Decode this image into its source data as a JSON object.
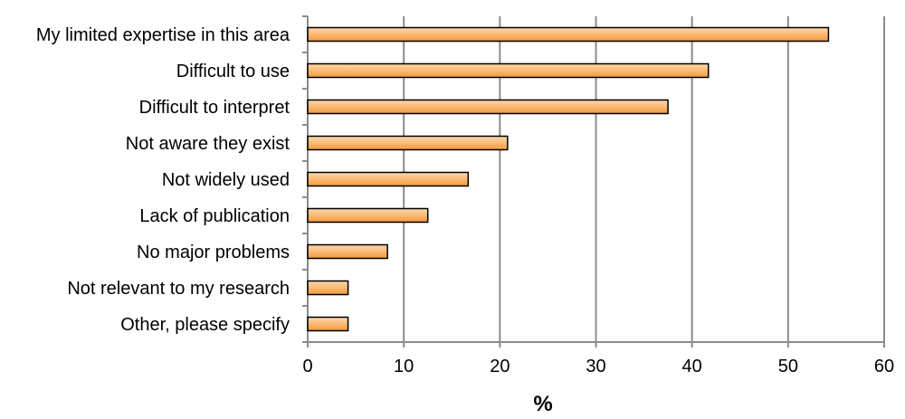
{
  "chart_data": {
    "type": "bar",
    "orientation": "horizontal",
    "categories": [
      "My limited expertise in this area",
      "Difficult to use",
      "Difficult to interpret",
      "Not aware they exist",
      "Not widely used",
      "Lack of publication",
      "No major problems",
      "Not relevant to my research",
      "Other, please specify"
    ],
    "values": [
      54.2,
      41.7,
      37.5,
      20.8,
      16.7,
      12.5,
      8.3,
      4.2,
      4.2
    ],
    "title": "",
    "xlabel": "%",
    "ylabel": "",
    "xlim": [
      0,
      60
    ],
    "x_ticks": [
      "0",
      "10",
      "20",
      "30",
      "40",
      "50",
      "60"
    ],
    "grid": "vertical",
    "legend": "none",
    "colors": {
      "bar_top": "#ffd9ae",
      "bar_bottom": "#f59a3c",
      "bar_edge": "#000000",
      "grid": "#8c8c8c"
    }
  }
}
